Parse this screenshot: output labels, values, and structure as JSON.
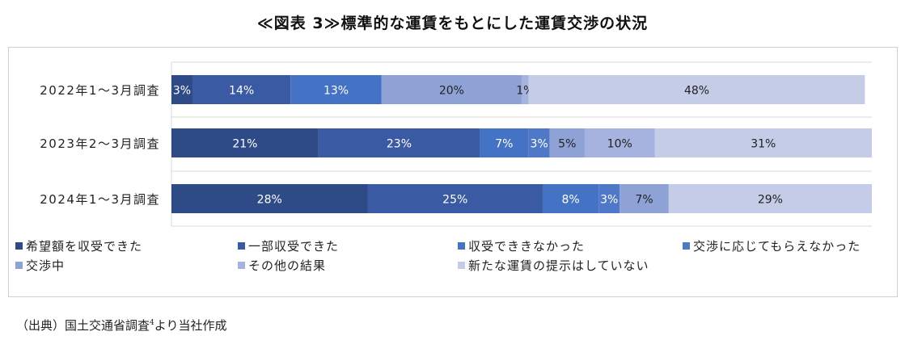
{
  "title": "≪図表 3≫標準的な運賃をもとにした運賃交渉の状況",
  "source_text": "（出典）国土交通省調査",
  "source_sup": "4",
  "source_suffix": "より当社作成",
  "chart_data": {
    "type": "bar",
    "orientation": "horizontal",
    "stacked": true,
    "percent": true,
    "categories": [
      "2022年1～3月調査",
      "2023年2～3月調査",
      "2024年1～3月調査"
    ],
    "series": [
      {
        "name": "希望額を収受できた",
        "color": "#2e4a87",
        "values": [
          3,
          21,
          28
        ]
      },
      {
        "name": "一部収受できた",
        "color": "#3a5ba3",
        "values": [
          14,
          23,
          25
        ]
      },
      {
        "name": "収受でききなかった",
        "color": "#4472c4",
        "values": [
          13,
          7,
          8
        ]
      },
      {
        "name": "交渉に応じてもらえなかった",
        "color": "#4f79c8",
        "values": [
          0,
          3,
          3
        ]
      },
      {
        "name": "交渉中",
        "color": "#8ea2d6",
        "values": [
          20,
          5,
          7
        ]
      },
      {
        "name": "その他の結果",
        "color": "#a5b3de",
        "values": [
          1,
          10,
          0
        ]
      },
      {
        "name": "新たな運賃の提示はしていない",
        "color": "#c4cce8",
        "values": [
          48,
          31,
          29
        ]
      }
    ],
    "data_labels": [
      [
        "3%",
        "14%",
        "13%",
        "",
        "20%",
        "1%",
        "48%"
      ],
      [
        "21%",
        "23%",
        "7%",
        "3%",
        "5%",
        "10%",
        "31%"
      ],
      [
        "28%",
        "25%",
        "8%",
        "3%",
        "7%",
        "",
        "29%"
      ]
    ],
    "xlim": [
      0,
      100
    ],
    "grid": true,
    "legend_position": "bottom"
  }
}
